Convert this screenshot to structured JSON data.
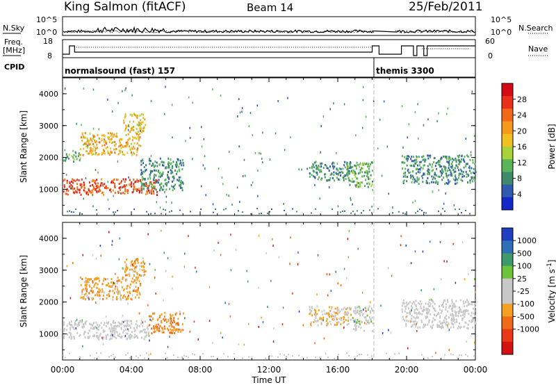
{
  "header": {
    "station": "King Salmon (fitACF)",
    "beam": "Beam 14",
    "date": "25/Feb/2011"
  },
  "strips": {
    "nsky_label": "N.Sky",
    "nsearch_label": "N.Search",
    "freq_label_1": "Freq.",
    "freq_label_2": "[MHz]",
    "nave_label": "Nave",
    "cpid_label": "CPID",
    "nsky_ticks": [
      "10^5",
      "10^0"
    ],
    "nsearch_ticks": [
      "10^5",
      "10^0"
    ],
    "freq_ticks": [
      "18",
      "8"
    ],
    "nave_ticks": [
      "60",
      "0"
    ],
    "cpid_modes": [
      {
        "name": "normalsound (fast) 157",
        "start_hour": 0.0,
        "end_hour": 18.1
      },
      {
        "name": "themis 3300",
        "start_hour": 18.1,
        "end_hour": 24.0
      }
    ]
  },
  "axes": {
    "x_label": "Time UT",
    "x_ticks": [
      "00:00",
      "04:00",
      "08:00",
      "12:00",
      "16:00",
      "20:00",
      "00:00"
    ],
    "y_label_html": "Slant Range [km]",
    "y_ticks": [
      "1000",
      "2000",
      "3000",
      "4000"
    ]
  },
  "colorbars": {
    "power": {
      "label": "Power [dB]",
      "ticks": [
        "4",
        "8",
        "12",
        "16",
        "20",
        "24",
        "28"
      ],
      "colors": [
        "#1428c8",
        "#2f5ab0",
        "#3e8a6a",
        "#5ab45a",
        "#a8d23c",
        "#f0c020",
        "#f59a1a",
        "#f26a18",
        "#e8301a",
        "#d40a14"
      ]
    },
    "velocity": {
      "label": "Velocity [m s",
      "label_sup": "-1",
      "label_end": "]",
      "ticks": [
        "1000",
        "500",
        "100",
        "25",
        "-25",
        "-100",
        "-500",
        "-1000"
      ],
      "colors": [
        "#1f3fc0",
        "#2e6fb8",
        "#3e9a6a",
        "#6ec23a",
        "#c8c8c8",
        "#c8c8c8",
        "#f5a020",
        "#f06a18",
        "#e83818",
        "#d41212"
      ]
    }
  },
  "chart_data": [
    {
      "type": "heatmap",
      "title": "Power",
      "x_range_hours": [
        0,
        24
      ],
      "ylim": [
        180,
        4500
      ],
      "xlabel": "Time UT",
      "ylabel": "Slant Range [km]",
      "colorbar_label": "Power [dB]",
      "colorbar_range": [
        0,
        30
      ],
      "regions": [
        {
          "t0": 0.0,
          "t1": 5.5,
          "r0": 850,
          "r1": 1350,
          "value": 24
        },
        {
          "t0": 0.0,
          "t1": 1.0,
          "r0": 1900,
          "r1": 2200,
          "value": 10
        },
        {
          "t0": 1.0,
          "t1": 4.5,
          "r0": 2100,
          "r1": 2800,
          "value": 18
        },
        {
          "t0": 3.5,
          "t1": 4.8,
          "r0": 2800,
          "r1": 3400,
          "value": 16
        },
        {
          "t0": 4.5,
          "t1": 7.0,
          "r0": 1000,
          "r1": 2000,
          "value": 8
        },
        {
          "t0": 14.3,
          "t1": 16.8,
          "r0": 1300,
          "r1": 1900,
          "value": 8
        },
        {
          "t0": 16.5,
          "t1": 18.0,
          "r0": 1100,
          "r1": 1900,
          "value": 10
        },
        {
          "t0": 19.7,
          "t1": 24.0,
          "r0": 1200,
          "r1": 2100,
          "value": 8
        }
      ]
    },
    {
      "type": "heatmap",
      "title": "Velocity",
      "x_range_hours": [
        0,
        24
      ],
      "ylim": [
        180,
        4500
      ],
      "xlabel": "Time UT",
      "ylabel": "Slant Range [km]",
      "colorbar_label": "Velocity [m s-1]",
      "colorbar_range": [
        -1000,
        1000
      ],
      "regions": [
        {
          "t0": 0.0,
          "t1": 5.0,
          "r0": 850,
          "r1": 1450,
          "value": 0
        },
        {
          "t0": 1.0,
          "t1": 4.5,
          "r0": 2100,
          "r1": 2800,
          "value": -300
        },
        {
          "t0": 3.5,
          "t1": 4.8,
          "r0": 2800,
          "r1": 3400,
          "value": -300
        },
        {
          "t0": 5.0,
          "t1": 7.0,
          "r0": 1050,
          "r1": 1700,
          "value": -400
        },
        {
          "t0": 14.3,
          "t1": 16.8,
          "r0": 1300,
          "r1": 1900,
          "value": -200
        },
        {
          "t0": 16.8,
          "t1": 18.0,
          "r0": 1100,
          "r1": 1900,
          "value": 100
        },
        {
          "t0": 19.7,
          "t1": 24.0,
          "r0": 1200,
          "r1": 2100,
          "value": 0
        }
      ]
    }
  ]
}
